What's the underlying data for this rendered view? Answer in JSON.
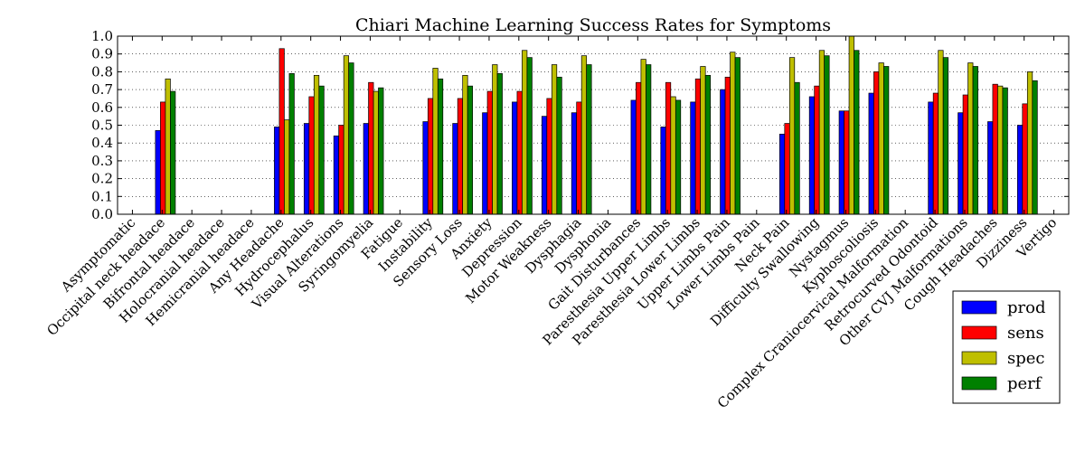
{
  "chart_data": {
    "type": "bar",
    "title": "Chiari Machine Learning Success Rates for Symptoms",
    "xlabel": "",
    "ylabel": "",
    "ylim": [
      0,
      1.0
    ],
    "yticks": [
      "0.0",
      "0.1",
      "0.2",
      "0.3",
      "0.4",
      "0.5",
      "0.6",
      "0.7",
      "0.8",
      "0.9",
      "1.0"
    ],
    "grid": true,
    "legend_position": "bottom-right",
    "categories": [
      "Asymptomatic",
      "Occipital neck headace",
      "Bifrontal headace",
      "Holocranial headace",
      "Hemicranial headace",
      "Any Headache",
      "Hydrocephalus",
      "Visual Alterations",
      "Syringomyelia",
      "Fatigue",
      "Instability",
      "Sensory Loss",
      "Anxiety",
      "Depression",
      "Motor Weakness",
      "Dysphagia",
      "Dysphonia",
      "Gait Disturbances",
      "Paresthesia Upper Limbs",
      "Paresthesia Lower Limbs",
      "Upper Limbs Pain",
      "Lower Limbs Pain",
      "Neck Pain",
      "Difficulty Swallowing",
      "Nystagmus",
      "Kyphoscoliosis",
      "Complex Craniocervical Malformation",
      "Retrocurved Odontoid",
      "Other CVJ Malformations",
      "Cough Headaches",
      "Dizziness",
      "Vertigo"
    ],
    "series": [
      {
        "name": "prod",
        "color": "#0000ff",
        "values": [
          null,
          0.47,
          null,
          null,
          null,
          0.49,
          0.51,
          0.44,
          0.51,
          null,
          0.52,
          0.51,
          0.57,
          0.63,
          0.55,
          0.57,
          null,
          0.64,
          0.49,
          0.63,
          0.7,
          null,
          0.45,
          0.66,
          0.58,
          0.68,
          null,
          0.63,
          0.57,
          0.52,
          0.5,
          null
        ]
      },
      {
        "name": "sens",
        "color": "#ff0000",
        "values": [
          null,
          0.63,
          null,
          null,
          null,
          0.93,
          0.66,
          0.5,
          0.74,
          null,
          0.65,
          0.65,
          0.69,
          0.69,
          0.65,
          0.63,
          null,
          0.74,
          0.74,
          0.76,
          0.77,
          null,
          0.51,
          0.72,
          0.58,
          0.8,
          null,
          0.68,
          0.67,
          0.73,
          0.62,
          null
        ]
      },
      {
        "name": "spec",
        "color": "#bfbf00",
        "values": [
          null,
          0.76,
          null,
          null,
          null,
          0.53,
          0.78,
          0.89,
          0.69,
          null,
          0.82,
          0.78,
          0.84,
          0.92,
          0.84,
          0.89,
          null,
          0.87,
          0.66,
          0.83,
          0.91,
          null,
          0.88,
          0.92,
          1.0,
          0.85,
          null,
          0.92,
          0.85,
          0.72,
          0.8,
          null
        ]
      },
      {
        "name": "perf",
        "color": "#008000",
        "values": [
          null,
          0.69,
          null,
          null,
          null,
          0.79,
          0.72,
          0.85,
          0.71,
          null,
          0.76,
          0.72,
          0.79,
          0.88,
          0.77,
          0.84,
          null,
          0.84,
          0.64,
          0.78,
          0.88,
          null,
          0.74,
          0.89,
          0.92,
          0.83,
          null,
          0.88,
          0.83,
          0.71,
          0.75,
          null
        ]
      }
    ]
  }
}
